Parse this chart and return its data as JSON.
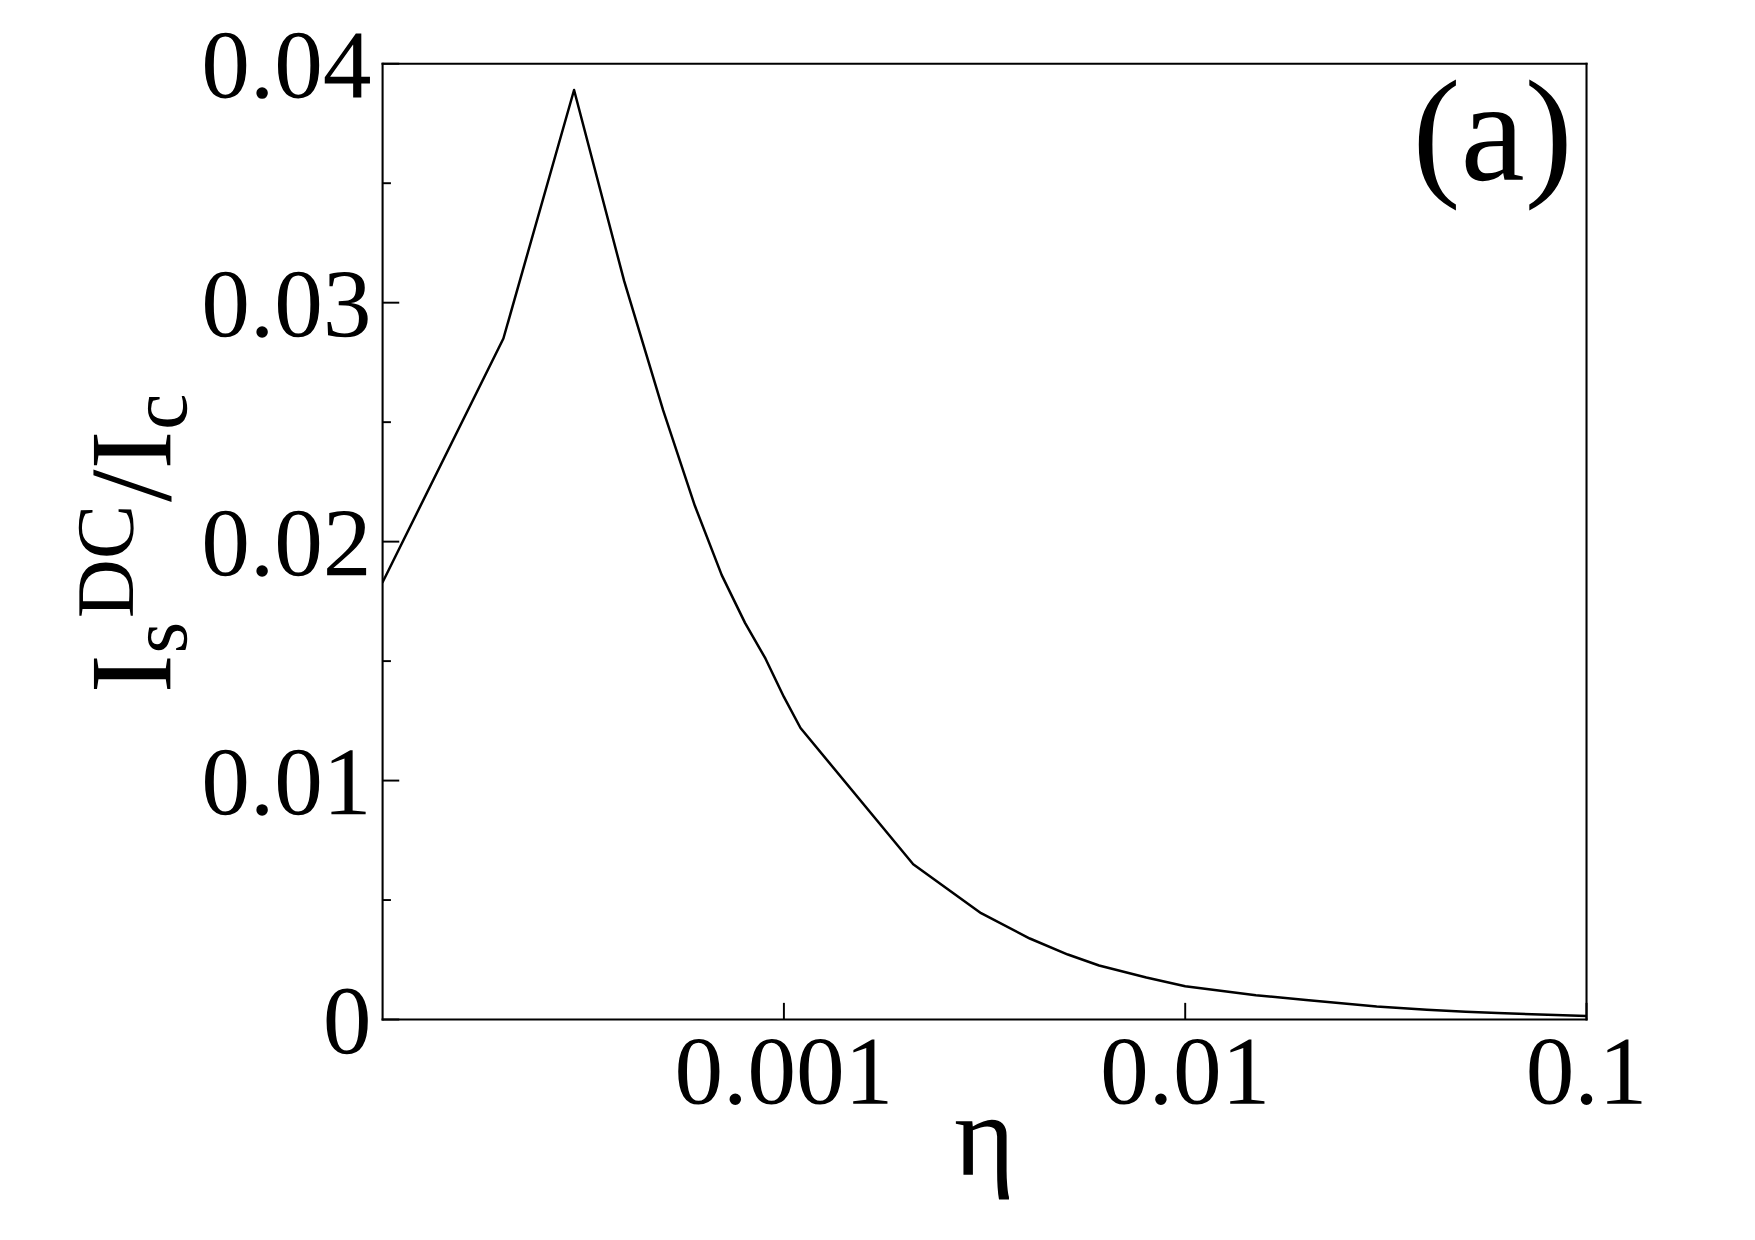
{
  "chart_data": {
    "type": "line",
    "xlabel": "η",
    "ylabel": "I$_{s}$$^{DC}$/I$_{c}$",
    "annotations": [
      "(a)"
    ],
    "x": [
      0.0001,
      0.0002,
      0.0003,
      0.0004,
      0.0005,
      0.0006,
      0.0007,
      0.0008,
      0.0009,
      0.001,
      0.0011,
      0.0021,
      0.0031,
      0.0041,
      0.0051,
      0.0061,
      0.008,
      0.01,
      0.015,
      0.02,
      0.03,
      0.04,
      0.05,
      0.06,
      0.08,
      0.1
    ],
    "series": [
      {
        "color": "#000000",
        "values": [
          0.0183,
          0.0285,
          0.0389,
          0.0309,
          0.0255,
          0.0215,
          0.0186,
          0.0166,
          0.0151,
          0.0135,
          0.0122,
          0.0065,
          0.00445,
          0.00339,
          0.00272,
          0.00226,
          0.00176,
          0.00139,
          0.00102,
          0.00082,
          0.00055,
          0.00041,
          0.00033,
          0.00027,
          0.0002,
          0.00015
        ]
      }
    ],
    "log": "x",
    "xlim": [
      0.0001,
      0.1
    ],
    "ylim": [
      0,
      0.04
    ],
    "xticks": [
      0.001,
      0.01,
      0.1
    ],
    "yticks": [
      0,
      0.01,
      0.02,
      0.03,
      0.04
    ],
    "marker": "none",
    "line_style": "solid",
    "grid": false
  }
}
